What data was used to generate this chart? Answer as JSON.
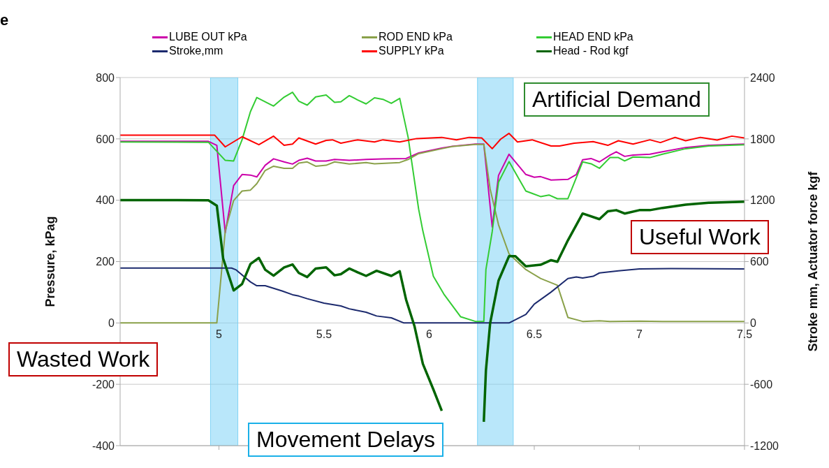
{
  "chart_data": {
    "type": "line",
    "xlabel": null,
    "ylabel": "Pressure, kPag",
    "y2label": "Stroke mm, Actuator force kgf",
    "xlim": [
      4.53,
      7.5
    ],
    "xticks": [
      5,
      5.5,
      6,
      6.5,
      7,
      7.5
    ],
    "ylim": [
      -400,
      800
    ],
    "yticks": [
      -400,
      -200,
      0,
      200,
      400,
      600,
      800
    ],
    "y2lim": [
      -1200,
      2400
    ],
    "y2ticks": [
      -1200,
      -600,
      0,
      600,
      1200,
      1800,
      2400
    ],
    "grid": "y",
    "legend": "top",
    "series": [
      {
        "name": "LUBE OUT kPa",
        "color": "#cc00aa",
        "x": [
          4.53,
          4.95,
          4.99,
          5.03,
          5.07,
          5.11,
          5.15,
          5.18,
          5.22,
          5.26,
          5.31,
          5.35,
          5.38,
          5.42,
          5.46,
          5.51,
          5.55,
          5.62,
          5.7,
          5.78,
          5.89,
          5.95,
          6.06,
          6.11,
          6.22,
          6.26,
          6.27,
          6.3,
          6.33,
          6.38,
          6.42,
          6.46,
          6.5,
          6.53,
          6.58,
          6.66,
          6.7,
          6.73,
          6.77,
          6.81,
          6.86,
          6.89,
          6.93,
          6.97,
          7.05,
          7.11,
          7.22,
          7.33,
          7.5
        ],
        "values": [
          592,
          592,
          579,
          294,
          448,
          484,
          482,
          476,
          514,
          535,
          525,
          518,
          530,
          537,
          528,
          528,
          533,
          530,
          533,
          535,
          536,
          554,
          570,
          576,
          583,
          583,
          517,
          313,
          481,
          550,
          517,
          484,
          475,
          477,
          466,
          468,
          484,
          532,
          536,
          525,
          547,
          558,
          543,
          547,
          550,
          558,
          572,
          579,
          583
        ]
      },
      {
        "name": "ROD END kPa",
        "color": "#8aa14a",
        "x": [
          4.53,
          4.99,
          5.03,
          5.07,
          5.11,
          5.15,
          5.18,
          5.22,
          5.26,
          5.31,
          5.35,
          5.38,
          5.42,
          5.46,
          5.51,
          5.55,
          5.62,
          5.7,
          5.74,
          5.86,
          5.9,
          5.95,
          6.06,
          6.11,
          6.22,
          6.26,
          6.29,
          6.33,
          6.38,
          6.46,
          6.53,
          6.61,
          6.66,
          6.73,
          6.81,
          6.86,
          7.0,
          7.11,
          7.5
        ],
        "values": [
          0,
          0,
          300,
          399,
          430,
          433,
          454,
          497,
          511,
          504,
          504,
          521,
          525,
          511,
          514,
          525,
          518,
          523,
          519,
          523,
          533,
          552,
          568,
          575,
          582,
          582,
          437,
          320,
          225,
          174,
          145,
          123,
          18,
          5,
          7,
          5,
          6,
          5,
          5
        ]
      },
      {
        "name": "HEAD END kPa",
        "color": "#33cc33",
        "x": [
          4.53,
          4.95,
          5.03,
          5.07,
          5.11,
          5.15,
          5.18,
          5.26,
          5.31,
          5.35,
          5.38,
          5.42,
          5.46,
          5.51,
          5.55,
          5.58,
          5.62,
          5.66,
          5.7,
          5.74,
          5.78,
          5.82,
          5.86,
          5.9,
          5.95,
          5.97,
          6.02,
          6.07,
          6.15,
          6.22,
          6.26,
          6.27,
          6.3,
          6.33,
          6.38,
          6.46,
          6.53,
          6.57,
          6.61,
          6.66,
          6.73,
          6.77,
          6.81,
          6.86,
          6.9,
          6.93,
          6.97,
          7.05,
          7.11,
          7.22,
          7.33,
          7.5
        ],
        "values": [
          590,
          589,
          530,
          528,
          597,
          689,
          735,
          707,
          736,
          752,
          723,
          710,
          737,
          743,
          719,
          721,
          741,
          727,
          714,
          734,
          729,
          716,
          732,
          605,
          371,
          300,
          152,
          94,
          20,
          5,
          5,
          174,
          298,
          459,
          526,
          430,
          412,
          417,
          405,
          405,
          525,
          519,
          504,
          539,
          539,
          528,
          541,
          539,
          550,
          568,
          577,
          581
        ]
      },
      {
        "name": "Stroke,mm",
        "color": "#1c2a6e",
        "axis": "y2",
        "x": [
          4.53,
          5.06,
          5.08,
          5.15,
          5.18,
          5.22,
          5.3,
          5.35,
          5.38,
          5.42,
          5.5,
          5.58,
          5.62,
          5.7,
          5.75,
          5.82,
          5.88,
          6.38,
          6.46,
          6.5,
          6.58,
          6.66,
          6.7,
          6.73,
          6.78,
          6.81,
          6.9,
          7.0,
          7.15,
          7.5
        ],
        "values": [
          537,
          537,
          521,
          401,
          364,
          364,
          313,
          276,
          263,
          237,
          193,
          166,
          138,
          105,
          68,
          50,
          0,
          0,
          83,
          184,
          302,
          434,
          450,
          440,
          456,
          489,
          510,
          528,
          532,
          528
        ]
      },
      {
        "name": "SUPPLY kPa",
        "color": "#ff0000",
        "x": [
          4.53,
          4.98,
          5.03,
          5.11,
          5.19,
          5.26,
          5.31,
          5.35,
          5.38,
          5.46,
          5.51,
          5.54,
          5.58,
          5.66,
          5.74,
          5.78,
          5.86,
          5.94,
          6.06,
          6.13,
          6.19,
          6.25,
          6.3,
          6.34,
          6.38,
          6.42,
          6.49,
          6.58,
          6.62,
          6.69,
          6.78,
          6.85,
          6.9,
          6.97,
          7.05,
          7.1,
          7.17,
          7.22,
          7.29,
          7.37,
          7.44,
          7.5
        ],
        "values": [
          612,
          612,
          574,
          607,
          581,
          609,
          579,
          583,
          603,
          583,
          595,
          597,
          586,
          597,
          590,
          597,
          590,
          601,
          605,
          597,
          605,
          603,
          568,
          599,
          618,
          590,
          597,
          577,
          577,
          586,
          591,
          579,
          594,
          583,
          597,
          588,
          605,
          594,
          605,
          596,
          609,
          603
        ]
      },
      {
        "name": "Head - Rod kgf",
        "color": "#006400",
        "axis": "y2",
        "x": [
          4.53,
          4.95,
          4.99,
          5.02,
          5.07,
          5.11,
          5.15,
          5.19,
          5.22,
          5.26,
          5.31,
          5.35,
          5.38,
          5.42,
          5.46,
          5.51,
          5.55,
          5.58,
          5.62,
          5.66,
          5.7,
          5.75,
          5.82,
          5.86,
          5.89,
          5.93,
          5.97,
          6.02,
          6.06,
          6.1,
          6.2,
          6.26,
          6.27,
          6.29,
          6.33,
          6.38,
          6.41,
          6.46,
          6.53,
          6.58,
          6.61,
          6.66,
          6.73,
          6.81,
          6.85,
          6.89,
          6.93,
          7.0,
          7.05,
          7.11,
          7.22,
          7.33,
          7.5
        ],
        "values": [
          1201,
          1200,
          1146,
          631,
          318,
          381,
          577,
          636,
          521,
          462,
          543,
          572,
          489,
          449,
          532,
          543,
          466,
          477,
          532,
          495,
          460,
          510,
          460,
          506,
          230,
          -30,
          -400,
          -650,
          -859,
          null,
          null,
          -967,
          -465,
          -4,
          414,
          653,
          653,
          554,
          569,
          614,
          598,
          808,
          1070,
          1015,
          1092,
          1103,
          1070,
          1103,
          1103,
          1125,
          1157,
          1175,
          1186
        ]
      }
    ],
    "bands": [
      {
        "axis": "x",
        "from": 4.96,
        "to": 5.09,
        "color": "#7fd3f5"
      },
      {
        "axis": "x",
        "from": 6.23,
        "to": 6.4,
        "color": "#7fd3f5"
      }
    ],
    "annotations": [
      "e",
      "Artificial Demand",
      "Useful Work",
      "Wasted Work",
      "Movement Delays"
    ]
  }
}
